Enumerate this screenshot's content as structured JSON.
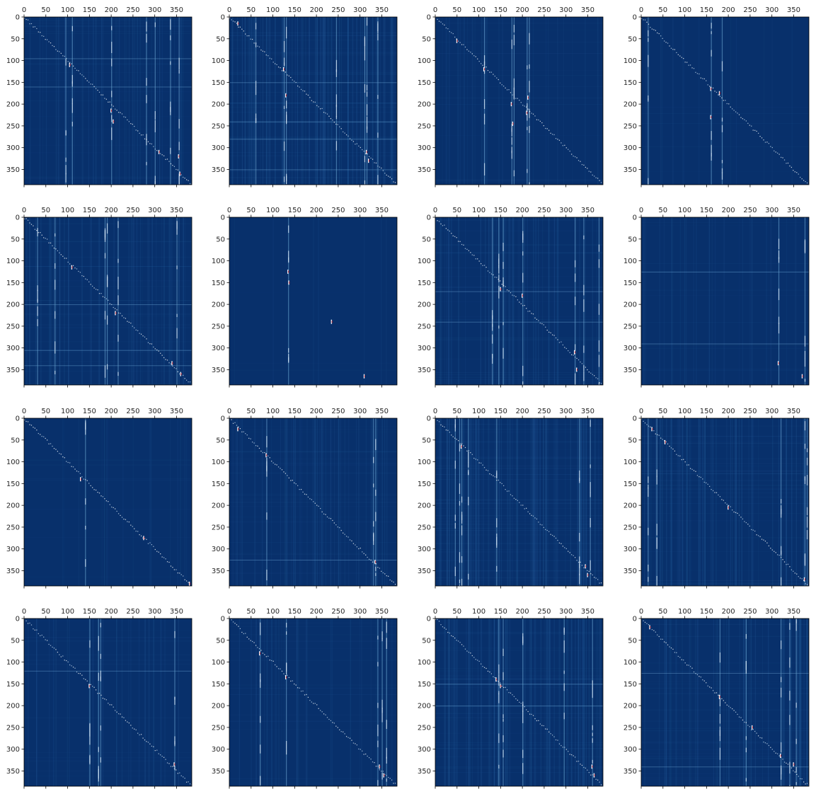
{
  "figure": {
    "rows": 4,
    "cols": 4,
    "colormap": "RdBu_r",
    "colors": {
      "background": "#08306b",
      "band_mid": "#2c6aa8",
      "band_light": "#6ea9d6",
      "band_pale": "#c6dbef",
      "peak": "#ffffff",
      "hot": "#d6604d",
      "hottest": "#b2182b"
    }
  },
  "chart_data": [
    {
      "type": "heatmap",
      "panel": 1,
      "xlim": [
        0,
        385
      ],
      "ylim": [
        385,
        0
      ],
      "xticks": [
        0,
        50,
        100,
        150,
        200,
        250,
        300,
        350
      ],
      "yticks": [
        0,
        50,
        100,
        150,
        200,
        250,
        300,
        350
      ],
      "tick_labels": [
        "0",
        "50",
        "100",
        "150",
        "200",
        "250",
        "300",
        "350"
      ],
      "grid": false,
      "bright_columns": [
        95,
        110,
        200,
        280,
        300,
        335,
        355
      ],
      "bright_rows": [
        95,
        160
      ],
      "hot_spots": [
        [
          105,
          110
        ],
        [
          200,
          215
        ],
        [
          205,
          240
        ],
        [
          310,
          310
        ],
        [
          355,
          320
        ],
        [
          358,
          360
        ]
      ],
      "diagonal": true,
      "density": 0.5
    },
    {
      "type": "heatmap",
      "panel": 2,
      "xlim": [
        0,
        385
      ],
      "ylim": [
        385,
        0
      ],
      "xticks": [
        0,
        50,
        100,
        150,
        200,
        250,
        300,
        350
      ],
      "yticks": [
        0,
        50,
        100,
        150,
        200,
        250,
        300,
        350
      ],
      "tick_labels": [
        "0",
        "50",
        "100",
        "150",
        "200",
        "250",
        "300",
        "350"
      ],
      "grid": false,
      "bright_columns": [
        60,
        125,
        130,
        245,
        310,
        315,
        340
      ],
      "bright_rows": [
        150,
        240,
        280,
        350
      ],
      "hot_spots": [
        [
          20,
          15
        ],
        [
          125,
          120
        ],
        [
          130,
          180
        ],
        [
          315,
          310
        ],
        [
          320,
          330
        ]
      ],
      "diagonal": true,
      "density": 0.8
    },
    {
      "type": "heatmap",
      "panel": 3,
      "xlim": [
        0,
        385
      ],
      "ylim": [
        385,
        0
      ],
      "xticks": [
        0,
        50,
        100,
        150,
        200,
        250,
        300,
        350
      ],
      "yticks": [
        0,
        50,
        100,
        150,
        200,
        250,
        300,
        350
      ],
      "tick_labels": [
        "0",
        "50",
        "100",
        "150",
        "200",
        "250",
        "300",
        "350"
      ],
      "grid": false,
      "bright_columns": [
        112,
        175,
        180,
        210,
        215
      ],
      "bright_rows": [],
      "hot_spots": [
        [
          50,
          55
        ],
        [
          112,
          120
        ],
        [
          175,
          200
        ],
        [
          178,
          245
        ],
        [
          210,
          220
        ],
        [
          213,
          185
        ]
      ],
      "diagonal": true,
      "density": 0.3
    },
    {
      "type": "heatmap",
      "panel": 4,
      "xlim": [
        0,
        385
      ],
      "ylim": [
        385,
        0
      ],
      "xticks": [
        0,
        50,
        100,
        150,
        200,
        250,
        300,
        350
      ],
      "yticks": [
        0,
        50,
        100,
        150,
        200,
        250,
        300,
        350
      ],
      "tick_labels": [
        "0",
        "50",
        "100",
        "150",
        "200",
        "250",
        "300",
        "350"
      ],
      "grid": false,
      "bright_columns": [
        15,
        160,
        185
      ],
      "bright_rows": [],
      "hot_spots": [
        [
          160,
          165
        ],
        [
          160,
          230
        ],
        [
          180,
          175
        ]
      ],
      "diagonal": true,
      "density": 0.15
    },
    {
      "type": "heatmap",
      "panel": 5,
      "xlim": [
        0,
        385
      ],
      "ylim": [
        385,
        0
      ],
      "xticks": [
        0,
        50,
        100,
        150,
        200,
        250,
        300,
        350
      ],
      "yticks": [
        0,
        50,
        100,
        150,
        200,
        250,
        300,
        350
      ],
      "tick_labels": [
        "0",
        "50",
        "100",
        "150",
        "200",
        "250",
        "300",
        "350"
      ],
      "grid": false,
      "bright_columns": [
        30,
        70,
        185,
        190,
        215,
        350
      ],
      "bright_rows": [
        200,
        305,
        340
      ],
      "hot_spots": [
        [
          110,
          115
        ],
        [
          210,
          220
        ],
        [
          340,
          335
        ],
        [
          360,
          360
        ]
      ],
      "diagonal": true,
      "density": 0.55
    },
    {
      "type": "heatmap",
      "panel": 6,
      "xlim": [
        0,
        385
      ],
      "ylim": [
        385,
        0
      ],
      "xticks": [
        0,
        50,
        100,
        150,
        200,
        250,
        300,
        350
      ],
      "yticks": [
        0,
        50,
        100,
        150,
        200,
        250,
        300,
        350
      ],
      "tick_labels": [
        "0",
        "50",
        "100",
        "150",
        "200",
        "250",
        "300",
        "350"
      ],
      "grid": false,
      "bright_columns": [
        135
      ],
      "bright_rows": [],
      "hot_spots": [
        [
          135,
          125
        ],
        [
          137,
          150
        ],
        [
          235,
          240
        ],
        [
          310,
          365
        ]
      ],
      "diagonal": false,
      "density": 0.08
    },
    {
      "type": "heatmap",
      "panel": 7,
      "xlim": [
        0,
        385
      ],
      "ylim": [
        385,
        0
      ],
      "xticks": [
        0,
        50,
        100,
        150,
        200,
        250,
        300,
        350
      ],
      "yticks": [
        0,
        50,
        100,
        150,
        200,
        250,
        300,
        350
      ],
      "tick_labels": [
        "0",
        "50",
        "100",
        "150",
        "200",
        "250",
        "300",
        "350"
      ],
      "grid": false,
      "bright_columns": [
        130,
        145,
        155,
        200,
        320,
        340,
        375
      ],
      "bright_rows": [
        170,
        240
      ],
      "hot_spots": [
        [
          150,
          165
        ],
        [
          200,
          180
        ],
        [
          320,
          310
        ],
        [
          325,
          350
        ]
      ],
      "diagonal": true,
      "density": 0.6
    },
    {
      "type": "heatmap",
      "panel": 8,
      "xlim": [
        0,
        385
      ],
      "ylim": [
        385,
        0
      ],
      "xticks": [
        0,
        50,
        100,
        150,
        200,
        250,
        300,
        350
      ],
      "yticks": [
        0,
        50,
        100,
        150,
        200,
        250,
        300,
        350
      ],
      "tick_labels": [
        "0",
        "50",
        "100",
        "150",
        "200",
        "250",
        "300",
        "350"
      ],
      "grid": false,
      "bright_columns": [
        315,
        375
      ],
      "bright_rows": [
        125,
        290
      ],
      "hot_spots": [
        [
          315,
          335
        ],
        [
          370,
          365
        ]
      ],
      "diagonal": false,
      "density": 0.3
    },
    {
      "type": "heatmap",
      "panel": 9,
      "xlim": [
        0,
        385
      ],
      "ylim": [
        385,
        0
      ],
      "xticks": [
        0,
        50,
        100,
        150,
        200,
        250,
        300,
        350
      ],
      "yticks": [
        0,
        50,
        100,
        150,
        200,
        250,
        300,
        350
      ],
      "tick_labels": [
        "0",
        "50",
        "100",
        "150",
        "200",
        "250",
        "300",
        "350"
      ],
      "grid": false,
      "bright_columns": [
        140
      ],
      "bright_rows": [],
      "hot_spots": [
        [
          130,
          140
        ],
        [
          275,
          275
        ],
        [
          380,
          380
        ]
      ],
      "diagonal": true,
      "density": 0.2
    },
    {
      "type": "heatmap",
      "panel": 10,
      "xlim": [
        0,
        385
      ],
      "ylim": [
        385,
        0
      ],
      "xticks": [
        0,
        50,
        100,
        150,
        200,
        250,
        300,
        350
      ],
      "yticks": [
        0,
        50,
        100,
        150,
        200,
        250,
        300,
        350
      ],
      "tick_labels": [
        "0",
        "50",
        "100",
        "150",
        "200",
        "250",
        "300",
        "350"
      ],
      "grid": false,
      "bright_columns": [
        85,
        330,
        335
      ],
      "bright_rows": [
        325
      ],
      "hot_spots": [
        [
          20,
          25
        ],
        [
          85,
          85
        ],
        [
          335,
          330
        ]
      ],
      "diagonal": true,
      "density": 0.55
    },
    {
      "type": "heatmap",
      "panel": 11,
      "xlim": [
        0,
        385
      ],
      "ylim": [
        385,
        0
      ],
      "xticks": [
        0,
        50,
        100,
        150,
        200,
        250,
        300,
        350
      ],
      "yticks": [
        0,
        50,
        100,
        150,
        200,
        250,
        300,
        350
      ],
      "tick_labels": [
        "0",
        "50",
        "100",
        "150",
        "200",
        "250",
        "300",
        "350"
      ],
      "grid": false,
      "bright_columns": [
        45,
        55,
        60,
        75,
        140,
        330,
        355
      ],
      "bright_rows": [],
      "hot_spots": [
        [
          60,
          65
        ],
        [
          345,
          340
        ],
        [
          350,
          360
        ]
      ],
      "diagonal": true,
      "density": 0.85
    },
    {
      "type": "heatmap",
      "panel": 12,
      "xlim": [
        0,
        385
      ],
      "ylim": [
        385,
        0
      ],
      "xticks": [
        0,
        50,
        100,
        150,
        200,
        250,
        300,
        350
      ],
      "yticks": [
        0,
        50,
        100,
        150,
        200,
        250,
        300,
        350
      ],
      "tick_labels": [
        "0",
        "50",
        "100",
        "150",
        "200",
        "250",
        "300",
        "350"
      ],
      "grid": false,
      "bright_columns": [
        15,
        35,
        320,
        375,
        380
      ],
      "bright_rows": [],
      "hot_spots": [
        [
          25,
          25
        ],
        [
          55,
          55
        ],
        [
          200,
          205
        ],
        [
          375,
          370
        ]
      ],
      "diagonal": true,
      "density": 0.7
    },
    {
      "type": "heatmap",
      "panel": 13,
      "xlim": [
        0,
        385
      ],
      "ylim": [
        385,
        0
      ],
      "xticks": [
        0,
        50,
        100,
        150,
        200,
        250,
        300,
        350
      ],
      "yticks": [
        0,
        50,
        100,
        150,
        200,
        250,
        300,
        350
      ],
      "tick_labels": [
        "0",
        "50",
        "100",
        "150",
        "200",
        "250",
        "300",
        "350"
      ],
      "grid": false,
      "bright_columns": [
        150,
        170,
        175,
        345
      ],
      "bright_rows": [
        120
      ],
      "hot_spots": [
        [
          150,
          155
        ],
        [
          345,
          335
        ]
      ],
      "diagonal": true,
      "density": 0.35
    },
    {
      "type": "heatmap",
      "panel": 14,
      "xlim": [
        0,
        385
      ],
      "ylim": [
        385,
        0
      ],
      "xticks": [
        0,
        50,
        100,
        150,
        200,
        250,
        300,
        350
      ],
      "yticks": [
        0,
        50,
        100,
        150,
        200,
        250,
        300,
        350
      ],
      "tick_labels": [
        "0",
        "50",
        "100",
        "150",
        "200",
        "250",
        "300",
        "350"
      ],
      "grid": false,
      "bright_columns": [
        70,
        130,
        340,
        350,
        360
      ],
      "bright_rows": [],
      "hot_spots": [
        [
          70,
          80
        ],
        [
          130,
          135
        ],
        [
          345,
          340
        ],
        [
          355,
          360
        ]
      ],
      "diagonal": true,
      "density": 0.35
    },
    {
      "type": "heatmap",
      "panel": 15,
      "xlim": [
        0,
        385
      ],
      "ylim": [
        385,
        0
      ],
      "xticks": [
        0,
        50,
        100,
        150,
        200,
        250,
        300,
        350
      ],
      "yticks": [
        0,
        50,
        100,
        150,
        200,
        250,
        300,
        350
      ],
      "tick_labels": [
        "0",
        "50",
        "100",
        "150",
        "200",
        "250",
        "300",
        "350"
      ],
      "grid": false,
      "bright_columns": [
        145,
        155,
        200,
        295,
        360
      ],
      "bright_rows": [
        150,
        200
      ],
      "hot_spots": [
        [
          140,
          140
        ],
        [
          150,
          155
        ],
        [
          360,
          340
        ],
        [
          365,
          360
        ]
      ],
      "diagonal": true,
      "density": 0.8
    },
    {
      "type": "heatmap",
      "panel": 16,
      "xlim": [
        0,
        385
      ],
      "ylim": [
        385,
        0
      ],
      "xticks": [
        0,
        50,
        100,
        150,
        200,
        250,
        300,
        350
      ],
      "yticks": [
        0,
        50,
        100,
        150,
        200,
        250,
        300,
        350
      ],
      "tick_labels": [
        "0",
        "50",
        "100",
        "150",
        "200",
        "250",
        "300",
        "350"
      ],
      "grid": false,
      "bright_columns": [
        180,
        240,
        320,
        340,
        355
      ],
      "bright_rows": [
        125,
        340
      ],
      "hot_spots": [
        [
          20,
          20
        ],
        [
          180,
          180
        ],
        [
          255,
          250
        ],
        [
          320,
          315
        ],
        [
          350,
          335
        ]
      ],
      "diagonal": true,
      "density": 0.6
    }
  ]
}
